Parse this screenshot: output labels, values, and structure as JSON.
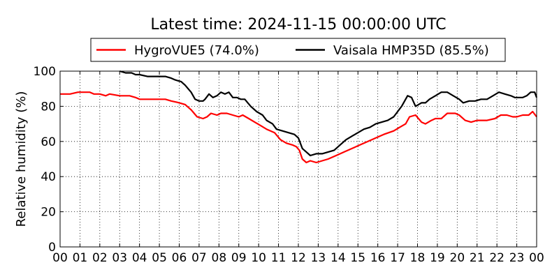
{
  "chart_data": {
    "type": "line",
    "title": "Latest time: 2024-11-15 00:00:00 UTC",
    "xlabel": "",
    "ylabel": "Relative humidity (%)",
    "xlim": [
      0,
      24
    ],
    "ylim": [
      0,
      100
    ],
    "x_ticks": [
      "00",
      "01",
      "02",
      "03",
      "04",
      "05",
      "06",
      "07",
      "08",
      "09",
      "10",
      "11",
      "12",
      "13",
      "14",
      "15",
      "16",
      "17",
      "18",
      "19",
      "20",
      "21",
      "22",
      "23",
      "00"
    ],
    "y_ticks": [
      0,
      20,
      40,
      60,
      80,
      100
    ],
    "grid": true,
    "legend_position": "top-center",
    "x_unit": "hour (UTC)",
    "series": [
      {
        "name": "HygroVUE5 (74.0%)",
        "color": "#ff0000",
        "x": [
          0,
          0.5,
          0.9,
          1.5,
          1.7,
          2.0,
          2.3,
          2.5,
          3.0,
          3.5,
          3.8,
          4.0,
          4.5,
          5.0,
          5.3,
          5.6,
          6.0,
          6.3,
          6.6,
          6.9,
          7.2,
          7.4,
          7.6,
          7.9,
          8.1,
          8.4,
          8.7,
          9.0,
          9.2,
          9.5,
          9.8,
          10.1,
          10.4,
          10.8,
          11.1,
          11.4,
          11.7,
          11.9,
          12.05,
          12.2,
          12.4,
          12.6,
          12.9,
          13.2,
          13.5,
          13.9,
          14.3,
          14.7,
          15.1,
          15.5,
          15.9,
          16.3,
          16.8,
          17.1,
          17.4,
          17.6,
          17.9,
          18.2,
          18.4,
          18.7,
          18.9,
          19.2,
          19.5,
          19.9,
          20.1,
          20.4,
          20.7,
          21.0,
          21.5,
          21.9,
          22.2,
          22.5,
          22.8,
          23.0,
          23.3,
          23.6,
          23.8,
          24.0
        ],
        "y": [
          87,
          87,
          88,
          88,
          87,
          87,
          86,
          87,
          86,
          86,
          85,
          84,
          84,
          84,
          84,
          83,
          82,
          81,
          78,
          74,
          73,
          74,
          76,
          75,
          76,
          76,
          75,
          74,
          75,
          73,
          71,
          69,
          67,
          65,
          61,
          59,
          58,
          57,
          55,
          50,
          48,
          49,
          48,
          49,
          50,
          52,
          54,
          56,
          58,
          60,
          62,
          64,
          66,
          68,
          70,
          74,
          75,
          71,
          70,
          72,
          73,
          73,
          76,
          76,
          75,
          72,
          71,
          72,
          72,
          73,
          75,
          75,
          74,
          74,
          75,
          75,
          77,
          74
        ]
      },
      {
        "name": "Vaisala HMP35D (85.5%)",
        "color": "#000000",
        "x": [
          3.0,
          3.3,
          3.6,
          3.8,
          4.0,
          4.4,
          4.8,
          5.0,
          5.3,
          5.6,
          5.8,
          6.1,
          6.3,
          6.6,
          6.8,
          7.0,
          7.2,
          7.3,
          7.5,
          7.7,
          7.9,
          8.1,
          8.3,
          8.5,
          8.7,
          8.9,
          9.1,
          9.3,
          9.6,
          9.9,
          10.2,
          10.4,
          10.7,
          10.9,
          11.2,
          11.5,
          11.8,
          12.0,
          12.2,
          12.4,
          12.6,
          12.9,
          13.2,
          13.5,
          13.8,
          14.1,
          14.4,
          14.7,
          15.0,
          15.3,
          15.6,
          15.9,
          16.2,
          16.5,
          16.8,
          17.0,
          17.2,
          17.5,
          17.7,
          17.9,
          18.2,
          18.4,
          18.6,
          18.9,
          19.2,
          19.5,
          19.8,
          20.1,
          20.3,
          20.6,
          20.9,
          21.2,
          21.5,
          21.8,
          22.1,
          22.4,
          22.7,
          22.9,
          23.1,
          23.3,
          23.5,
          23.7,
          23.9,
          24.0
        ],
        "y": [
          100,
          99,
          99,
          98,
          98,
          97,
          97,
          97,
          97,
          96,
          95,
          94,
          92,
          88,
          84,
          83,
          83,
          84,
          87,
          85,
          86,
          88,
          87,
          88,
          85,
          85,
          84,
          84,
          80,
          77,
          75,
          72,
          70,
          67,
          66,
          65,
          64,
          62,
          56,
          54,
          52,
          53,
          53,
          54,
          55,
          58,
          61,
          63,
          65,
          67,
          68,
          70,
          71,
          72,
          74,
          77,
          80,
          86,
          85,
          80,
          82,
          82,
          84,
          86,
          88,
          88,
          86,
          84,
          82,
          83,
          83,
          84,
          84,
          86,
          88,
          87,
          86,
          85,
          85,
          85,
          86,
          88,
          88,
          85
        ]
      }
    ]
  }
}
